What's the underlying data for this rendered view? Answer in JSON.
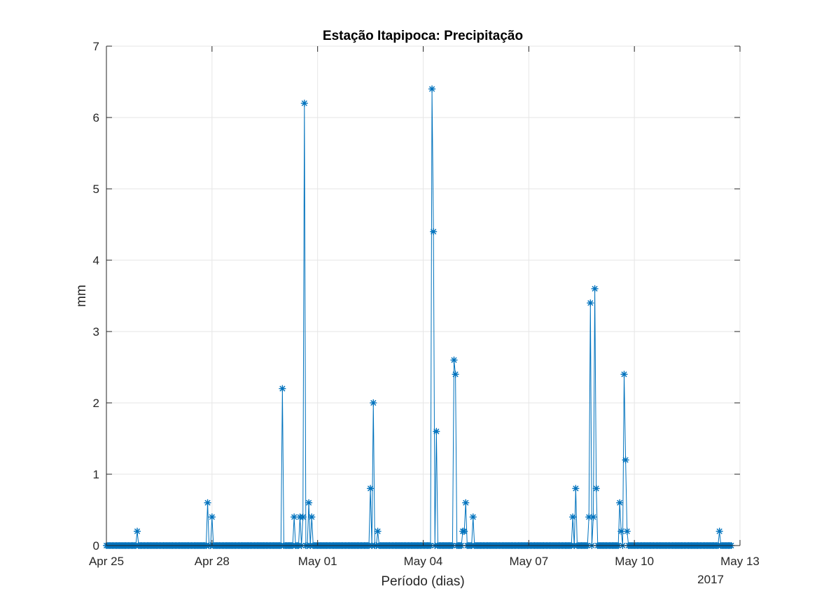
{
  "chart_data": {
    "type": "line",
    "title": "Estação Itapipoca: Precipitação",
    "xlabel": "Período (dias)",
    "ylabel": "mm",
    "year_label": "2017",
    "x_range": [
      "2017-04-25",
      "2017-05-13"
    ],
    "ylim": [
      0,
      7
    ],
    "x_ticks": [
      {
        "date": "2017-04-25",
        "label": "Apr 25"
      },
      {
        "date": "2017-04-28",
        "label": "Apr 28"
      },
      {
        "date": "2017-05-01",
        "label": "May 01"
      },
      {
        "date": "2017-05-04",
        "label": "May 04"
      },
      {
        "date": "2017-05-07",
        "label": "May 07"
      },
      {
        "date": "2017-05-10",
        "label": "May 10"
      },
      {
        "date": "2017-05-13",
        "label": "May 13"
      }
    ],
    "y_ticks": [
      0,
      1,
      2,
      3,
      4,
      5,
      6,
      7
    ],
    "grid": true,
    "marker": "asterisk",
    "line_color": "#0072BD",
    "sampling": "hourly, 2017-04-25 00:00 to 2017-05-12 18:00",
    "series": [
      {
        "nonzero_points": [
          {
            "date": "2017-04-25T21:00",
            "value": 0.2
          },
          {
            "date": "2017-04-27T21:00",
            "value": 0.6
          },
          {
            "date": "2017-04-28T00:00",
            "value": 0.4
          },
          {
            "date": "2017-04-30T00:00",
            "value": 2.2
          },
          {
            "date": "2017-04-30T08:00",
            "value": 0.4
          },
          {
            "date": "2017-04-30T12:00",
            "value": 0.4
          },
          {
            "date": "2017-04-30T14:00",
            "value": 0.4
          },
          {
            "date": "2017-04-30T15:00",
            "value": 6.2
          },
          {
            "date": "2017-04-30T18:00",
            "value": 0.6
          },
          {
            "date": "2017-04-30T20:00",
            "value": 0.4
          },
          {
            "date": "2017-05-02T12:00",
            "value": 0.8
          },
          {
            "date": "2017-05-02T14:00",
            "value": 2.0
          },
          {
            "date": "2017-05-02T17:00",
            "value": 0.2
          },
          {
            "date": "2017-05-04T06:00",
            "value": 6.4
          },
          {
            "date": "2017-05-04T07:00",
            "value": 4.4
          },
          {
            "date": "2017-05-04T09:00",
            "value": 1.6
          },
          {
            "date": "2017-05-04T21:00",
            "value": 2.6
          },
          {
            "date": "2017-05-04T22:00",
            "value": 2.4
          },
          {
            "date": "2017-05-05T03:00",
            "value": 0.2
          },
          {
            "date": "2017-05-05T04:00",
            "value": 0.2
          },
          {
            "date": "2017-05-05T05:00",
            "value": 0.6
          },
          {
            "date": "2017-05-05T10:00",
            "value": 0.4
          },
          {
            "date": "2017-05-08T06:00",
            "value": 0.4
          },
          {
            "date": "2017-05-08T08:00",
            "value": 0.8
          },
          {
            "date": "2017-05-08T17:00",
            "value": 0.4
          },
          {
            "date": "2017-05-08T18:00",
            "value": 3.4
          },
          {
            "date": "2017-05-08T20:00",
            "value": 0.4
          },
          {
            "date": "2017-05-08T21:00",
            "value": 3.6
          },
          {
            "date": "2017-05-08T22:00",
            "value": 0.8
          },
          {
            "date": "2017-05-09T14:00",
            "value": 0.6
          },
          {
            "date": "2017-05-09T15:00",
            "value": 0.2
          },
          {
            "date": "2017-05-09T17:00",
            "value": 2.4
          },
          {
            "date": "2017-05-09T18:00",
            "value": 1.2
          },
          {
            "date": "2017-05-09T19:00",
            "value": 0.2
          },
          {
            "date": "2017-05-12T10:00",
            "value": 0.2
          }
        ]
      }
    ]
  }
}
